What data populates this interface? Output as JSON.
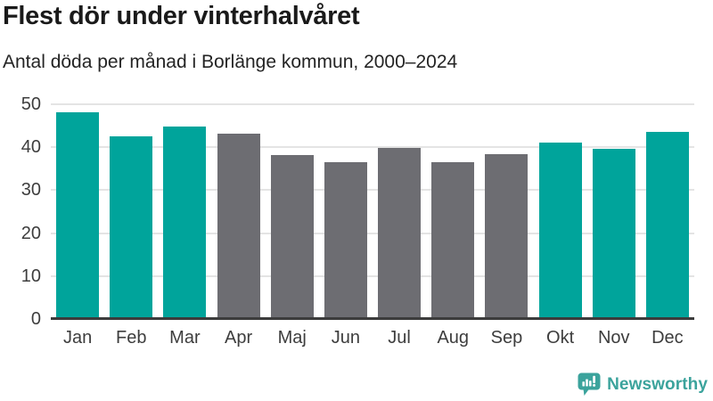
{
  "chart_data": {
    "type": "bar",
    "title": "Flest dör under vinterhalvåret",
    "subtitle": "Antal döda per månad i Borlänge kommun, 2000–2024",
    "categories": [
      "Jan",
      "Feb",
      "Mar",
      "Apr",
      "Maj",
      "Jun",
      "Jul",
      "Aug",
      "Sep",
      "Okt",
      "Nov",
      "Dec"
    ],
    "values": [
      48.1,
      42.5,
      44.8,
      43.1,
      38.1,
      36.6,
      39.9,
      36.6,
      38.3,
      41.0,
      39.7,
      43.5
    ],
    "bar_colors": [
      "#00a49b",
      "#00a49b",
      "#00a49b",
      "#6d6d72",
      "#6d6d72",
      "#6d6d72",
      "#6d6d72",
      "#6d6d72",
      "#6d6d72",
      "#00a49b",
      "#00a49b",
      "#00a49b"
    ],
    "highlight_color": "#00a49b",
    "muted_color": "#6d6d72",
    "xlabel": "",
    "ylabel": "",
    "ylim": [
      0,
      50
    ],
    "yticks": [
      0,
      10,
      20,
      30,
      40,
      50
    ],
    "grid": "horizontal",
    "grid_color": "#e4e4e4",
    "axis_color": "#3c3c3c",
    "tick_label_color": "#3d3d3d",
    "legend": "none"
  },
  "footer": {
    "brand": "Newsworthy",
    "brand_color": "#3ba39c",
    "logo_icon": "bar-chart-speech-bubble-icon"
  }
}
